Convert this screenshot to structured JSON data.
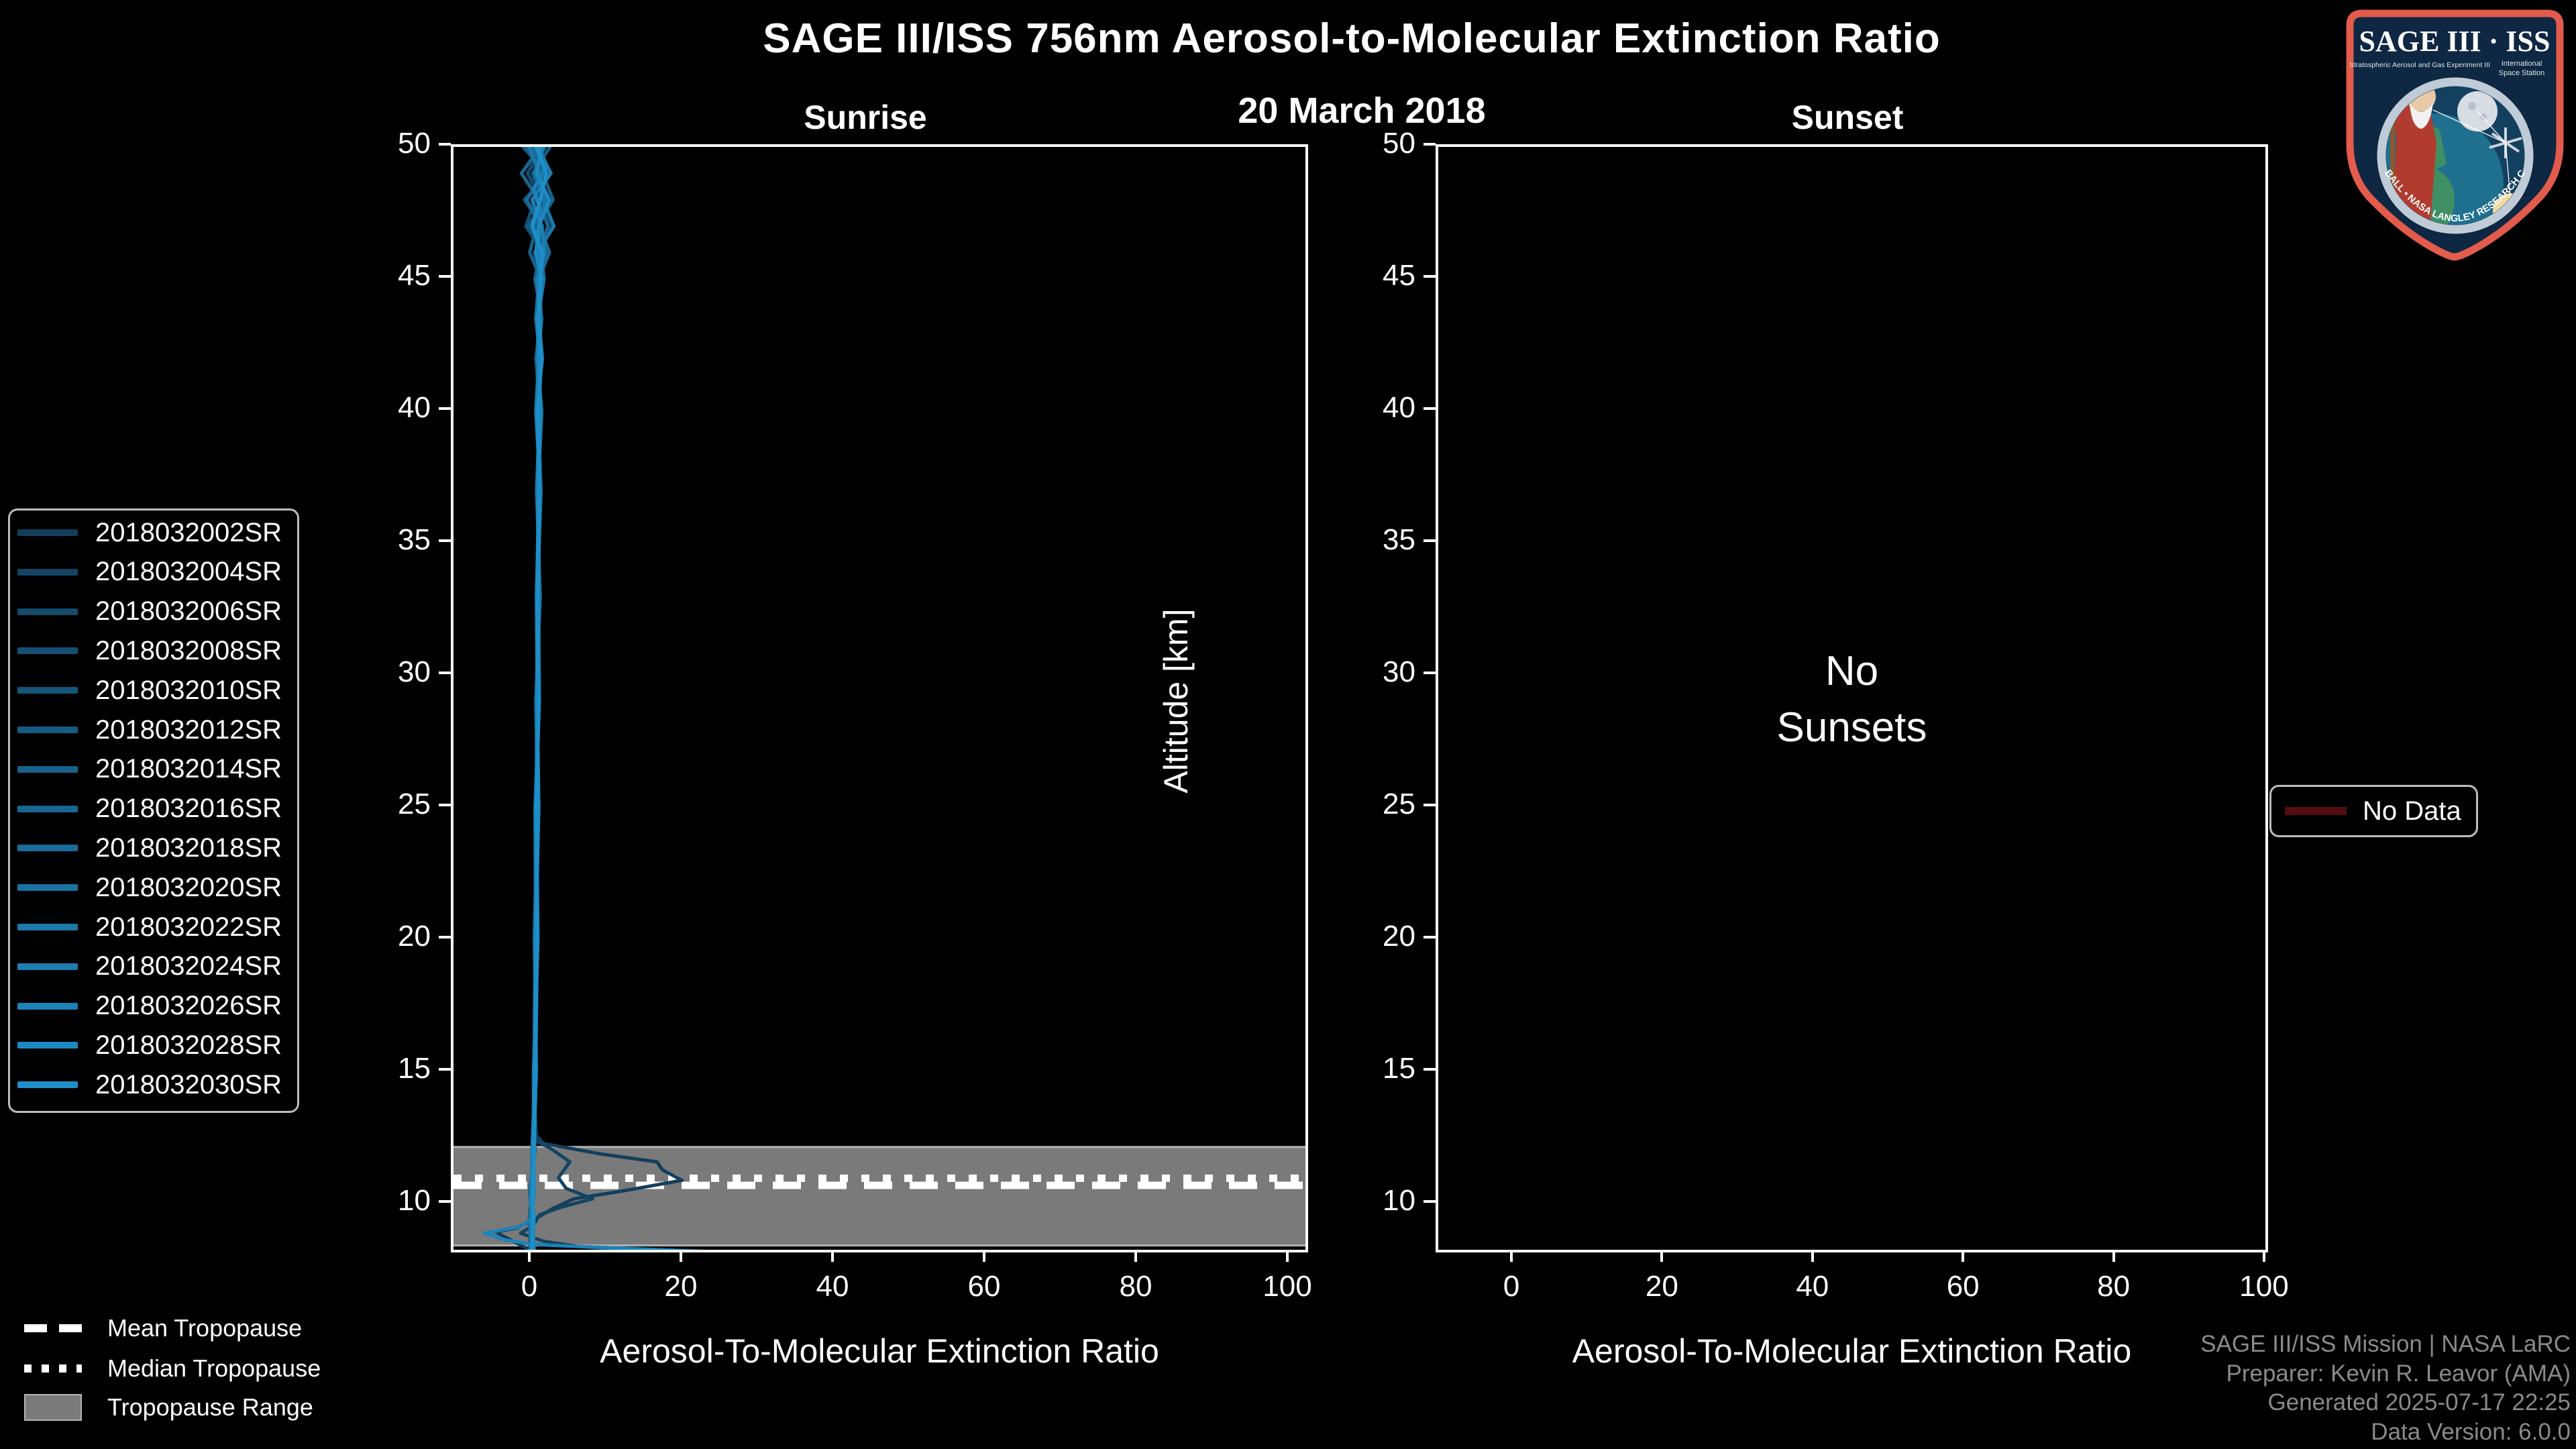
{
  "header": {
    "title": "SAGE III/ISS 756nm Aerosol-to-Molecular Extinction Ratio",
    "subtitle": "20 March 2018"
  },
  "panels": {
    "sunrise": {
      "title": "Sunrise",
      "xlabel": "Aerosol-To-Molecular Extinction Ratio",
      "ylabel": "Altitude [km]",
      "xticks": [
        0,
        20,
        40,
        60,
        80,
        100
      ],
      "yticks": [
        10,
        15,
        20,
        25,
        30,
        35,
        40,
        45,
        50
      ]
    },
    "sunset": {
      "title": "Sunset",
      "xlabel": "Aerosol-To-Molecular Extinction Ratio",
      "ylabel": "Altitude [km]",
      "xticks": [
        0,
        20,
        40,
        60,
        80,
        100
      ],
      "yticks": [
        10,
        15,
        20,
        25,
        30,
        35,
        40,
        45,
        50
      ],
      "empty_lines": [
        "No",
        "Sunsets"
      ]
    }
  },
  "tropopause_legend": {
    "items": [
      {
        "label": "Mean Tropopause",
        "style": "dashed",
        "color": "#ffffff"
      },
      {
        "label": "Median Tropopause",
        "style": "dotted",
        "color": "#ffffff"
      },
      {
        "label": "Tropopause Range",
        "style": "band",
        "color": "#7a7a7a"
      }
    ]
  },
  "no_data_legend": {
    "label": "No Data",
    "color": "#540d10"
  },
  "credits": {
    "lines": [
      "SAGE III/ISS Mission | NASA LaRC",
      "Preparer: Kevin R. Leavor (AMA)",
      "Generated 2025-07-17 22:25",
      "Data Version: 6.0.0"
    ]
  },
  "logo": {
    "title": "SAGE III · ISS",
    "subtitle_left": "Stratospheric Aerosol and Gas Experiment III",
    "subtitle_right_1": "International",
    "subtitle_right_2": "Space Station",
    "ring_text": "BALL • NASA LANGLEY RESEARCH CENTER • TAS-I • ESA",
    "border_color": "#e25b4b",
    "field_color": "#0e2742"
  },
  "chart_data": {
    "type": "line",
    "title": "SAGE III/ISS 756nm Aerosol-to-Molecular Extinction Ratio",
    "subtitle": "20 March 2018",
    "xlabel": "Aerosol-To-Molecular Extinction Ratio",
    "ylabel": "Altitude [km]",
    "xlim": [
      -10.4,
      102.8
    ],
    "ylim": [
      8.0,
      50.0
    ],
    "grid": false,
    "legend_position": "left",
    "tropopause": {
      "mean_km": 10.71,
      "median_km": 10.98,
      "range_km": [
        8.4,
        12.2
      ],
      "band_color": "#7a7a7a",
      "line_color": "#ffffff"
    },
    "sunrise": {
      "altitudes": [
        50,
        49,
        48,
        47,
        46,
        45,
        43.5,
        42,
        40,
        37,
        33,
        29,
        25,
        20,
        15,
        12,
        10.5,
        9.3,
        8.2
      ],
      "series": [
        {
          "label": "2018032002SR",
          "color": "#123E5B",
          "points": [
            [
              0.9,
              50
            ],
            [
              -0.5,
              49
            ],
            [
              1.5,
              48
            ],
            [
              0.4,
              47
            ],
            [
              1.2,
              46
            ],
            [
              0.8,
              45
            ],
            [
              1.0,
              43
            ],
            [
              0.8,
              40
            ],
            [
              0.9,
              36
            ],
            [
              0.7,
              32
            ],
            [
              0.6,
              28
            ],
            [
              0.5,
              24
            ],
            [
              0.4,
              20
            ],
            [
              0.3,
              16
            ],
            [
              0.4,
              13.5
            ],
            [
              0.6,
              12.6
            ],
            [
              1.5,
              12.3
            ],
            [
              9,
              11.9
            ],
            [
              16.5,
              11.6
            ],
            [
              17.2,
              11.3
            ],
            [
              19.8,
              10.9
            ],
            [
              12,
              10.5
            ],
            [
              5.5,
              10.2
            ],
            [
              2.5,
              9.8
            ],
            [
              0.8,
              9.5
            ],
            [
              -2.0,
              9.1
            ],
            [
              -4.8,
              8.95
            ],
            [
              -2.5,
              8.6
            ],
            [
              -0.5,
              8.3
            ],
            [
              0.5,
              8.1
            ]
          ]
        },
        {
          "label": "2018032004SR",
          "color": "#134463",
          "points": [
            [
              1.4,
              50
            ],
            [
              0.2,
              49
            ],
            [
              2.2,
              48
            ],
            [
              1.0,
              47
            ],
            [
              0.5,
              46
            ],
            [
              1.2,
              45
            ],
            [
              0.9,
              43
            ],
            [
              1.0,
              40
            ],
            [
              0.8,
              36
            ],
            [
              0.9,
              32
            ],
            [
              0.7,
              28
            ],
            [
              0.6,
              24
            ],
            [
              0.5,
              20
            ],
            [
              0.4,
              16
            ],
            [
              0.3,
              13.5
            ],
            [
              0.5,
              12.4
            ],
            [
              2.5,
              12.1
            ],
            [
              5.0,
              11.6
            ],
            [
              3.5,
              11.0
            ],
            [
              4.5,
              10.6
            ],
            [
              8.0,
              10.2
            ],
            [
              4.0,
              9.9
            ],
            [
              1.0,
              9.6
            ],
            [
              0.2,
              9.2
            ],
            [
              -1.5,
              8.9
            ],
            [
              1.5,
              8.6
            ],
            [
              6.0,
              8.4
            ],
            [
              14.0,
              8.25
            ],
            [
              30.0,
              8.05
            ]
          ]
        },
        {
          "label": "2018032006SR",
          "color": "#144A6B",
          "ratios": [
            1.8,
            -0.6,
            1.2,
            2.6,
            0.3,
            1.1,
            0.7,
            1.3,
            0.9,
            0.8,
            1.0,
            0.7,
            0.8,
            0.5,
            0.4,
            0.3,
            -0.1,
            -0.3,
            0.2
          ]
        },
        {
          "label": "2018032008SR",
          "color": "#154F73",
          "ratios": [
            -1.2,
            1.9,
            0.4,
            -0.8,
            1.5,
            0.6,
            1.2,
            0.5,
            1.1,
            0.9,
            0.7,
            0.9,
            0.6,
            0.6,
            0.3,
            0.2,
            -0.2,
            0.1,
            -0.1
          ]
        },
        {
          "label": "2018032010SR",
          "color": "#15557A",
          "ratios": [
            0.4,
            2.2,
            -1.0,
            1.4,
            0.8,
            1.5,
            0.6,
            1.0,
            0.7,
            1.1,
            0.8,
            0.6,
            0.9,
            0.4,
            0.5,
            0.1,
            0.0,
            -0.4,
            0.3
          ]
        },
        {
          "label": "2018032012SR",
          "color": "#165B82",
          "ratios": [
            2.4,
            0.1,
            1.6,
            -0.5,
            1.9,
            0.8,
            1.1,
            0.6,
            1.2,
            0.7,
            0.9,
            1.0,
            0.5,
            0.7,
            0.2,
            0.4,
            -0.3,
            0.0,
            0.1
          ]
        },
        {
          "label": "2018032014SR",
          "color": "#17618A",
          "ratios": [
            -0.8,
            1.4,
            2.8,
            0.6,
            -0.3,
            1.2,
            0.9,
            1.4,
            0.6,
            1.0,
            0.6,
            0.8,
            0.7,
            0.3,
            0.6,
            0.2,
            0.1,
            -0.2,
            -0.3
          ]
        },
        {
          "label": "2018032016SR",
          "color": "#186792",
          "ratios": [
            1.1,
            -1.4,
            0.9,
            2.1,
            1.0,
            0.4,
            1.3,
            0.8,
            1.0,
            0.6,
            1.1,
            0.5,
            0.8,
            0.6,
            0.3,
            0.3,
            -0.2,
            0.2,
            0.0
          ]
        },
        {
          "label": "2018032018SR",
          "color": "#196C9A",
          "ratios": [
            0.0,
            1.7,
            -0.7,
            1.1,
            2.3,
            0.9,
            0.5,
            1.1,
            0.8,
            1.2,
            0.7,
            0.9,
            0.4,
            0.5,
            0.4,
            0.1,
            0.2,
            -0.1,
            0.2
          ]
        },
        {
          "label": "2018032020SR",
          "color": "#1A72A1",
          "ratios": [
            1.6,
            0.3,
            2.0,
            0.2,
            1.2,
            1.6,
            0.8,
            0.7,
            1.3,
            0.8,
            1.0,
            0.6,
            0.7,
            0.4,
            0.5,
            0.3,
            0.0,
            0.3,
            -0.2
          ]
        },
        {
          "label": "2018032022SR",
          "color": "#1B78A9",
          "ratios": [
            -0.4,
            1.0,
            1.5,
            2.9,
            0.7,
            1.0,
            1.2,
            0.9,
            0.5,
            1.1,
            0.8,
            0.7,
            0.6,
            0.8,
            0.2,
            0.2,
            0.1,
            -0.3,
            0.1
          ]
        },
        {
          "label": "2018032024SR",
          "color": "#1C7EB1",
          "ratios": [
            0.8,
            2.5,
            0.0,
            1.3,
            1.7,
            0.7,
            1.0,
            1.2,
            0.9,
            0.7,
            0.9,
            0.8,
            0.5,
            0.6,
            0.4,
            0.0,
            -0.1,
            0.1,
            0.3
          ]
        },
        {
          "label": "2018032026SR",
          "color": "#1C83B9",
          "points": [
            [
              0.5,
              50
            ],
            [
              1.8,
              49.2
            ],
            [
              0.2,
              48.4
            ],
            [
              1.1,
              47.6
            ],
            [
              0.9,
              46.5
            ],
            [
              1.2,
              45
            ],
            [
              0.8,
              42
            ],
            [
              1.0,
              38
            ],
            [
              0.7,
              34
            ],
            [
              0.8,
              30
            ],
            [
              0.6,
              26
            ],
            [
              0.5,
              22
            ],
            [
              0.4,
              18
            ],
            [
              0.3,
              14
            ],
            [
              0.2,
              12
            ],
            [
              0.0,
              10.8
            ],
            [
              -0.2,
              10
            ],
            [
              0.3,
              9.5
            ],
            [
              -1.5,
              9.15
            ],
            [
              -6.3,
              8.9
            ],
            [
              -3.5,
              8.65
            ],
            [
              -0.5,
              8.5
            ],
            [
              2.0,
              8.45
            ],
            [
              10.0,
              8.35
            ],
            [
              24.0,
              8.2
            ],
            [
              38.0,
              8.08
            ]
          ]
        },
        {
          "label": "2018032028SR",
          "color": "#1D89C1",
          "ratios": [
            1.3,
            0.6,
            2.3,
            0.9,
            0.5,
            1.3,
            0.7,
            1.0,
            1.1,
            0.9,
            0.6,
            0.7,
            0.9,
            0.5,
            0.3,
            0.2,
            0.3,
            0.0,
            -0.1
          ]
        },
        {
          "label": "2018032030SR",
          "color": "#1E8FC9",
          "ratios": [
            0.6,
            1.9,
            1.1,
            0.0,
            1.4,
            1.1,
            0.9,
            1.3,
            0.7,
            1.0,
            0.8,
            0.9,
            0.6,
            0.7,
            0.5,
            0.3,
            0.1,
            0.2,
            0.1
          ]
        }
      ]
    },
    "sunset": {
      "series": [],
      "note": "No Sunsets"
    }
  }
}
